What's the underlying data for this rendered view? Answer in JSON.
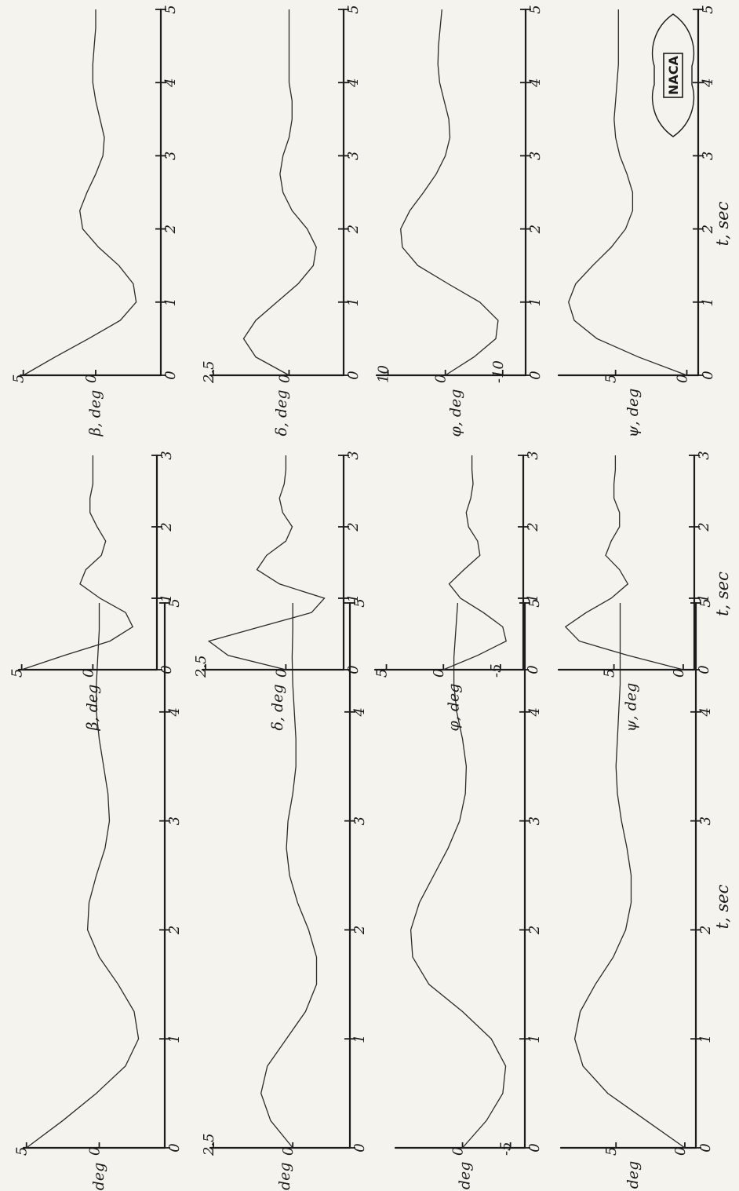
{
  "logo": {
    "text": "NACA"
  },
  "chart_data": [
    {
      "type": "line",
      "xlabel": "t, sec",
      "xticks": [
        "0",
        "1",
        "2",
        "3",
        "4",
        "5"
      ],
      "xlim": [
        0,
        5
      ],
      "panels": [
        {
          "ylabel": "β, deg",
          "yticks": [
            "5",
            "0"
          ],
          "ylim": [
            -4.5,
            5.2
          ],
          "x": [
            0,
            0.25,
            0.5,
            0.75,
            1,
            1.25,
            1.5,
            1.75,
            2,
            2.25,
            2.5,
            2.75,
            3,
            3.25,
            3.5,
            3.75,
            4,
            4.25,
            4.5,
            4.75,
            5
          ],
          "y": [
            5,
            2.5,
            0.2,
            -1.8,
            -2.7,
            -2.4,
            -1.3,
            0,
            0.8,
            0.7,
            0.2,
            -0.4,
            -0.7,
            -0.6,
            -0.3,
            0,
            0.2,
            0.2,
            0.1,
            0,
            0
          ]
        },
        {
          "ylabel": "δ, deg",
          "yticks": [
            "2.5",
            "0"
          ],
          "ylim": [
            -1.8,
            2.6
          ],
          "x": [
            0,
            0.25,
            0.5,
            0.75,
            1,
            1.25,
            1.5,
            1.75,
            2,
            2.25,
            2.5,
            2.75,
            3,
            3.25,
            3.5,
            3.75,
            4,
            4.25,
            4.5,
            4.75,
            5
          ],
          "y": [
            0,
            0.7,
            1.0,
            0.8,
            0.2,
            -0.4,
            -0.75,
            -0.75,
            -0.5,
            -0.15,
            0.1,
            0.2,
            0.15,
            0,
            -0.1,
            -0.1,
            -0.05,
            0,
            0.02,
            0,
            0
          ]
        },
        {
          "ylabel": "φ, deg",
          "yticks": [
            "0",
            "-5"
          ],
          "ylim": [
            -6.5,
            7
          ],
          "x": [
            0,
            0.25,
            0.5,
            0.75,
            1,
            1.25,
            1.5,
            1.75,
            2,
            2.25,
            2.5,
            2.75,
            3,
            3.25,
            3.5,
            3.75,
            4,
            4.25,
            4.5,
            4.75,
            5
          ],
          "y": [
            0,
            -2.5,
            -4.2,
            -4.5,
            -3,
            0,
            3.5,
            5.2,
            5.4,
            4.5,
            3,
            1.5,
            0.3,
            -0.3,
            -0.4,
            0,
            0.6,
            0.9,
            0.9,
            0.7,
            0.5
          ]
        },
        {
          "ylabel": "ψ, deg",
          "yticks": [
            "5",
            "0"
          ],
          "ylim": [
            -0.8,
            9
          ],
          "x": [
            0,
            0.25,
            0.5,
            0.75,
            1,
            1.25,
            1.5,
            1.75,
            2,
            2.25,
            2.5,
            2.75,
            3,
            3.25,
            3.5,
            3.75,
            4,
            4.25,
            4.5,
            4.75,
            5
          ],
          "y": [
            0,
            2.8,
            5.6,
            7.4,
            8,
            7.6,
            6.5,
            5.2,
            4.3,
            3.9,
            3.9,
            4.2,
            4.6,
            4.9,
            5,
            4.9,
            4.8,
            4.7,
            4.7,
            4.7,
            4.7
          ]
        }
      ]
    },
    {
      "type": "line",
      "xlabel": "t, sec",
      "xticks": [
        "0",
        "1",
        "2",
        "3"
      ],
      "xlim": [
        0,
        3
      ],
      "panels": [
        {
          "ylabel": "β, deg",
          "yticks": [
            "5",
            "0"
          ],
          "ylim": [
            -4.5,
            5.2
          ],
          "x": [
            0,
            0.2,
            0.4,
            0.6,
            0.8,
            1,
            1.2,
            1.4,
            1.6,
            1.8,
            2,
            2.2,
            2.4,
            2.6,
            2.8,
            3
          ],
          "y": [
            5,
            2,
            -1.2,
            -2.8,
            -2.3,
            -0.5,
            0.9,
            0.5,
            -0.6,
            -0.9,
            -0.3,
            0.2,
            0.2,
            0,
            0,
            0
          ]
        },
        {
          "ylabel": "δ, deg",
          "yticks": [
            "2.5",
            "0"
          ],
          "ylim": [
            -1.8,
            2.6
          ],
          "x": [
            0,
            0.2,
            0.4,
            0.6,
            0.8,
            1,
            1.2,
            1.4,
            1.6,
            1.8,
            2,
            2.2,
            2.4,
            2.6,
            2.8,
            3
          ],
          "y": [
            0,
            1.8,
            2.4,
            0.8,
            -0.8,
            -1.2,
            0.2,
            0.9,
            0.6,
            0,
            -0.2,
            0.1,
            0.2,
            0.05,
            0,
            0
          ]
        },
        {
          "ylabel": "φ, deg",
          "yticks": [
            "5",
            "0",
            "-5"
          ],
          "ylim": [
            -7,
            6
          ],
          "x": [
            0,
            0.2,
            0.4,
            0.6,
            0.8,
            1,
            1.2,
            1.4,
            1.6,
            1.8,
            2,
            2.2,
            2.4,
            2.6,
            2.8,
            3
          ],
          "y": [
            0,
            -3,
            -5.5,
            -5.2,
            -3.5,
            -1.5,
            -0.5,
            -1.8,
            -3.2,
            -3,
            -2.2,
            -2,
            -2.4,
            -2.6,
            -2.5,
            -2.5
          ]
        },
        {
          "ylabel": "ψ, deg",
          "yticks": [
            "5",
            "0"
          ],
          "ylim": [
            -0.8,
            9
          ],
          "x": [
            0,
            0.2,
            0.4,
            0.6,
            0.8,
            1,
            1.2,
            1.4,
            1.6,
            1.8,
            2,
            2.2,
            2.4,
            2.6,
            2.8,
            3
          ],
          "y": [
            0,
            4,
            7.5,
            8.5,
            7,
            5.2,
            4,
            4.6,
            5.6,
            5.2,
            4.6,
            4.6,
            5,
            5,
            4.9,
            4.9
          ]
        }
      ]
    },
    {
      "type": "line",
      "xlabel": "t, sec",
      "xticks": [
        "0",
        "1",
        "2",
        "3",
        "4",
        "5"
      ],
      "xlim": [
        0,
        5
      ],
      "panels": [
        {
          "ylabel": "β, deg",
          "yticks": [
            "5",
            "0"
          ],
          "ylim": [
            -4.5,
            5.2
          ],
          "x": [
            0,
            0.25,
            0.5,
            0.75,
            1,
            1.25,
            1.5,
            1.75,
            2,
            2.25,
            2.5,
            2.75,
            3,
            3.25,
            3.5,
            3.75,
            4,
            4.25,
            4.5,
            4.75,
            5
          ],
          "y": [
            5,
            2.8,
            0.5,
            -1.7,
            -2.8,
            -2.6,
            -1.6,
            -0.2,
            0.9,
            1.1,
            0.6,
            0,
            -0.5,
            -0.6,
            -0.3,
            0,
            0.2,
            0.2,
            0.1,
            0,
            0
          ]
        },
        {
          "ylabel": "δ, deg",
          "yticks": [
            "2.5",
            "0"
          ],
          "ylim": [
            -1.8,
            2.6
          ],
          "x": [
            0,
            0.25,
            0.5,
            0.75,
            1,
            1.25,
            1.5,
            1.75,
            2,
            2.25,
            2.5,
            2.75,
            3,
            3.25,
            3.5,
            3.75,
            4,
            4.25,
            4.5,
            4.75,
            5
          ],
          "y": [
            0,
            1.1,
            1.5,
            1.1,
            0.4,
            -0.3,
            -0.8,
            -0.9,
            -0.6,
            -0.1,
            0.2,
            0.3,
            0.2,
            0,
            -0.1,
            -0.1,
            0,
            0,
            0,
            0,
            0
          ]
        },
        {
          "ylabel": "φ, deg",
          "yticks": [
            "10",
            "0",
            "-10"
          ],
          "ylim": [
            -14,
            12
          ],
          "x": [
            0,
            0.25,
            0.5,
            0.75,
            1,
            1.25,
            1.5,
            1.75,
            2,
            2.25,
            2.5,
            2.75,
            3,
            3.25,
            3.5,
            3.75,
            4,
            4.25,
            4.5,
            4.75,
            5
          ],
          "y": [
            0,
            -5,
            -8.8,
            -9.2,
            -6,
            -0.5,
            4.8,
            7.5,
            7.8,
            6.2,
            3.8,
            1.6,
            0,
            -0.8,
            -0.6,
            0.2,
            1,
            1.3,
            1.2,
            0.9,
            0.6
          ]
        },
        {
          "ylabel": "ψ, deg",
          "yticks": [
            "5",
            "0"
          ],
          "ylim": [
            -0.8,
            9
          ],
          "x": [
            0,
            0.25,
            0.5,
            0.75,
            1,
            1.25,
            1.5,
            1.75,
            2,
            2.25,
            2.5,
            2.75,
            3,
            3.25,
            3.5,
            3.75,
            4,
            4.25,
            4.5,
            4.75,
            5
          ],
          "y": [
            0,
            3.4,
            6.3,
            7.9,
            8.3,
            7.8,
            6.6,
            5.3,
            4.3,
            3.8,
            3.8,
            4.2,
            4.7,
            5,
            5.1,
            5,
            4.9,
            4.8,
            4.8,
            4.8,
            4.8
          ]
        }
      ]
    }
  ]
}
